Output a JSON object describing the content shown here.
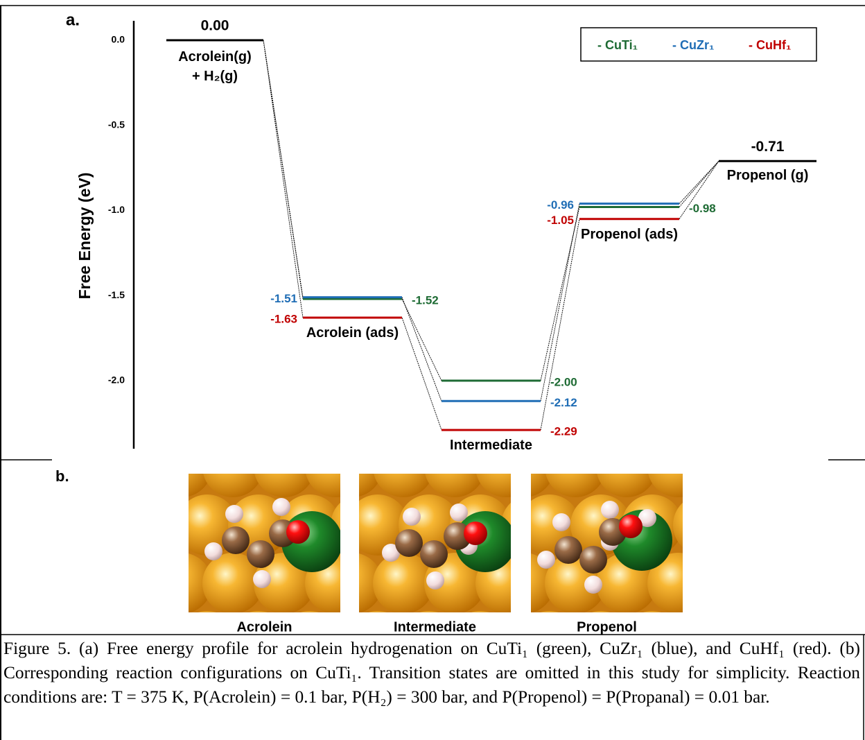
{
  "chart_data": {
    "type": "energy_profile",
    "panel_label": "a.",
    "ylabel": "Free Energy (eV)",
    "categories": [
      "Acrolein(g)\n+ H₂(g)",
      "Acrolein (ads)",
      "Intermediate",
      "Propenol (ads)",
      "Propenol (g)"
    ],
    "common_values": [
      0,
      null,
      null,
      null,
      -0.71
    ],
    "common_value_labels": [
      "0.00",
      null,
      null,
      null,
      "-0.71"
    ],
    "common_color": "#000000",
    "series": [
      {
        "name": "- CuTi₁",
        "color": "#1e6b34",
        "values": [
          null,
          -1.52,
          -2.0,
          -0.98,
          null
        ],
        "value_labels": [
          null,
          "-1.52",
          "-2.00",
          "-0.98",
          null
        ]
      },
      {
        "name": "- CuZr₁",
        "color": "#1f6db5",
        "values": [
          null,
          -1.51,
          -2.12,
          -0.96,
          null
        ],
        "value_labels": [
          null,
          "-1.51",
          "-2.12",
          "-0.96",
          null
        ]
      },
      {
        "name": "- CuHf₁",
        "color": "#c00000",
        "values": [
          null,
          -1.63,
          -2.29,
          -1.05,
          null
        ],
        "value_labels": [
          null,
          "-1.63",
          "-2.29",
          "-1.05",
          null
        ]
      }
    ],
    "ylim": [
      -2.4,
      0.1
    ],
    "yticks": [
      {
        "value": 0,
        "label": "0.0"
      },
      {
        "value": -0.5,
        "label": "-0.5"
      },
      {
        "value": -1.0,
        "label": "-1.0"
      },
      {
        "value": -1.5,
        "label": "-1.5"
      },
      {
        "value": -2.0,
        "label": "-2.0"
      }
    ],
    "legend": "top-right"
  },
  "panel_b": {
    "label": "b.",
    "images": [
      {
        "label": "Acrolein"
      },
      {
        "label": "Intermediate"
      },
      {
        "label": "Propenol"
      }
    ]
  },
  "caption": "Figure 5. (a) Free energy profile for acrolein hydrogenation on CuTi₁ (green), CuZr₁ (blue), and CuHf₁ (red). (b) Corresponding reaction configurations on CuTi₁. Transition states are omitted in this study for simplicity. Reaction conditions are: T = 375 K, P(Acrolein) = 0.1 bar, P(H₂) = 300 bar, and P(Propenol) = P(Propanal) = 0.01 bar."
}
